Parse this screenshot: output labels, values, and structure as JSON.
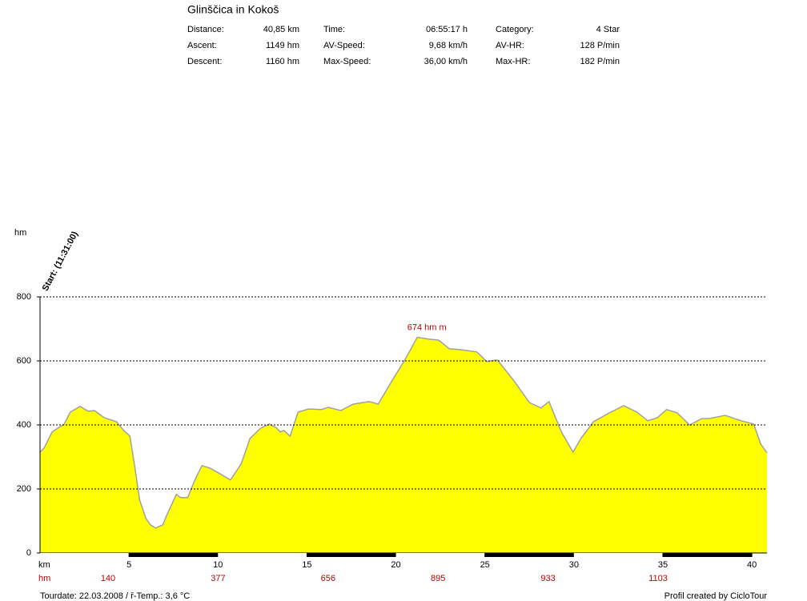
{
  "chart_data": {
    "type": "area",
    "title": "Glinščica in Kokoš",
    "stats": [
      [
        {
          "label": "Distance:",
          "value": "40,85 km"
        },
        {
          "label": "Ascent:",
          "value": "1149 hm"
        },
        {
          "label": "Descent:",
          "value": "1160 hm"
        }
      ],
      [
        {
          "label": "Time:",
          "value": "06:55:17 h"
        },
        {
          "label": "AV-Speed:",
          "value": "9,68 km/h"
        },
        {
          "label": "Max-Speed:",
          "value": "36,00 km/h"
        }
      ],
      [
        {
          "label": "Category:",
          "value": "4 Star"
        },
        {
          "label": "AV-HR:",
          "value": "128 P/min"
        },
        {
          "label": "Max-HR:",
          "value": "182 P/min"
        }
      ]
    ],
    "ylabel": "hm",
    "xlabel": "km",
    "start_label": "Start: (11:31:00)",
    "peak_label": "674 hm m",
    "row_label": "hm",
    "row_values": [
      140,
      377,
      656,
      895,
      933,
      1103
    ],
    "footer_left": "Tourdate: 22.03.2008  /  ř-Temp.: 3,6 °C",
    "footer_right": "Profil created by CicloTour",
    "color": "#ffff00",
    "line_color": "#a0a0a0",
    "x": [
      0,
      0.23,
      0.68,
      1,
      1.35,
      1.7,
      2.25,
      2.7,
      3.06,
      3.6,
      4.3,
      4.7,
      5.05,
      5.3,
      5.6,
      5.95,
      6.2,
      6.5,
      6.9,
      7.2,
      7.66,
      7.9,
      8.3,
      8.7,
      9.1,
      9.55,
      10.1,
      10.7,
      11.3,
      11.8,
      12.4,
      12.9,
      13.3,
      13.5,
      13.7,
      14.05,
      14.5,
      15.1,
      15.8,
      16.2,
      16.9,
      17.6,
      18.5,
      19,
      19.8,
      20.5,
      21.2,
      21.85,
      22.4,
      23,
      23.65,
      24.55,
      25.1,
      25.7,
      26.6,
      27.5,
      28.15,
      28.6,
      29.3,
      29.95,
      30.4,
      31.1,
      32,
      32.8,
      33.55,
      34.15,
      34.7,
      35.2,
      35.8,
      36.5,
      37.2,
      37.6,
      38.5,
      39.4,
      40.1,
      40.5,
      40.85
    ],
    "values": [
      315,
      328,
      378,
      390,
      402,
      440,
      458,
      443,
      445,
      423,
      410,
      383,
      365,
      278,
      165,
      108,
      88,
      78,
      88,
      128,
      183,
      173,
      173,
      228,
      273,
      265,
      248,
      228,
      278,
      358,
      390,
      403,
      390,
      378,
      383,
      365,
      440,
      450,
      448,
      455,
      445,
      465,
      473,
      465,
      540,
      603,
      674,
      668,
      665,
      638,
      635,
      628,
      598,
      603,
      540,
      470,
      453,
      473,
      378,
      315,
      358,
      410,
      438,
      460,
      440,
      413,
      423,
      448,
      438,
      400,
      420,
      420,
      430,
      413,
      403,
      340,
      313
    ],
    "xlim": [
      0,
      40.85
    ],
    "xticks": [
      5,
      10,
      15,
      20,
      25,
      30,
      35,
      40
    ],
    "ylim": [
      0,
      800
    ],
    "yticks": [
      0,
      200,
      400,
      600,
      800
    ],
    "grid": true
  }
}
